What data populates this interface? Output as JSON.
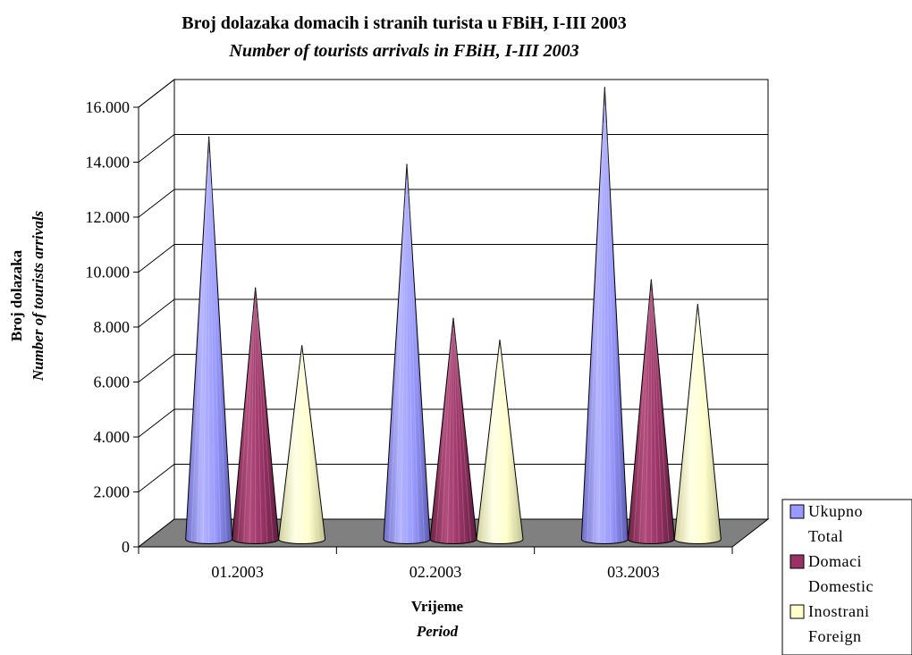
{
  "chart_data": {
    "type": "bar",
    "style": "3d-cone",
    "title": "Broj dolazaka domacih i stranih turista u FBiH, I-III 2003",
    "subtitle": "Number of tourists arrivals in FBiH, I-III 2003",
    "xlabel": "Vrijeme",
    "xlabel_en": "Period",
    "ylabel": "Broj dolazaka",
    "ylabel_en": "Number of tourists arrivals",
    "categories": [
      "01.2003",
      "02.2003",
      "03.2003"
    ],
    "ylim": [
      0,
      16000
    ],
    "yticks": [
      0,
      2000,
      4000,
      6000,
      8000,
      10000,
      12000,
      14000,
      16000
    ],
    "ytick_labels": [
      "0",
      "2.000",
      "4.000",
      "6.000",
      "8.000",
      "10.000",
      "12.000",
      "14.000",
      "16.000"
    ],
    "grid": true,
    "legend_position": "bottom-right",
    "series": [
      {
        "name": "Ukupno",
        "name_en": "Total",
        "values": [
          13200,
          12200,
          15000
        ]
      },
      {
        "name": "Domaci",
        "name_en": "Domestic",
        "values": [
          7700,
          6600,
          8000
        ]
      },
      {
        "name": "Inostrani",
        "name_en": "Foreign",
        "values": [
          5600,
          5800,
          7100
        ]
      }
    ],
    "colors": {
      "series": [
        "#9999ff",
        "#993366",
        "#ffffcc"
      ],
      "floor": "#808080",
      "wall": "#ffffff",
      "gridline": "#000000"
    }
  }
}
